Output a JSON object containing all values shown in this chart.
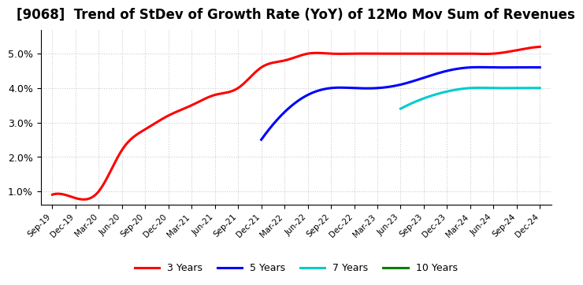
{
  "title": "[9068]  Trend of StDev of Growth Rate (YoY) of 12Mo Mov Sum of Revenues",
  "title_fontsize": 12,
  "background_color": "#ffffff",
  "grid_color": "#cccccc",
  "ylim": [
    0.006,
    0.057
  ],
  "yticks": [
    0.01,
    0.02,
    0.03,
    0.04,
    0.05
  ],
  "ytick_labels": [
    "1.0%",
    "2.0%",
    "3.0%",
    "4.0%",
    "5.0%"
  ],
  "x_labels": [
    "Sep-19",
    "Dec-19",
    "Mar-20",
    "Jun-20",
    "Sep-20",
    "Dec-20",
    "Mar-21",
    "Jun-21",
    "Sep-21",
    "Dec-21",
    "Mar-22",
    "Jun-22",
    "Sep-22",
    "Dec-22",
    "Mar-23",
    "Jun-23",
    "Sep-23",
    "Dec-23",
    "Mar-24",
    "Jun-24",
    "Sep-24",
    "Dec-24"
  ],
  "legend": [
    "3 Years",
    "5 Years",
    "7 Years",
    "10 Years"
  ],
  "legend_colors": [
    "#ff0000",
    "#0000ff",
    "#00cccc",
    "#008000"
  ],
  "series_3y": [
    0.009,
    0.008,
    0.01,
    0.022,
    0.028,
    0.032,
    0.035,
    0.038,
    0.04,
    0.046,
    0.048,
    0.05,
    0.05,
    0.05,
    0.05,
    0.05,
    0.05,
    0.05,
    0.05,
    0.05,
    0.051,
    0.052
  ],
  "series_5y": [
    null,
    null,
    null,
    null,
    null,
    null,
    null,
    null,
    null,
    0.025,
    0.033,
    0.038,
    0.04,
    0.04,
    0.04,
    0.041,
    0.043,
    0.045,
    0.046,
    0.046,
    0.046,
    0.046
  ],
  "series_7y": [
    null,
    null,
    null,
    null,
    null,
    null,
    null,
    null,
    null,
    null,
    null,
    null,
    null,
    null,
    null,
    0.034,
    0.037,
    0.039,
    0.04,
    0.04,
    0.04,
    0.04
  ],
  "series_10y": [
    null,
    null,
    null,
    null,
    null,
    null,
    null,
    null,
    null,
    null,
    null,
    null,
    null,
    null,
    null,
    null,
    null,
    null,
    null,
    null,
    null,
    null
  ]
}
